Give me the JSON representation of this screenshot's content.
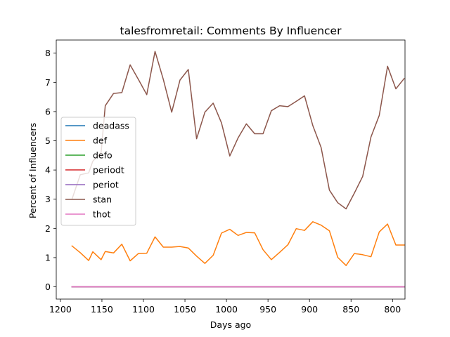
{
  "chart_data": {
    "type": "line",
    "title": "talesfromretail: Comments By Influencer",
    "xlabel": "Days ago",
    "ylabel": "Percent of Influencers",
    "xlim": [
      1205,
      785
    ],
    "ylim": [
      -0.42,
      8.45
    ],
    "x_inverted": true,
    "xticks": [
      1200,
      1150,
      1100,
      1050,
      1000,
      950,
      900,
      850,
      800
    ],
    "yticks": [
      0,
      1,
      2,
      3,
      4,
      5,
      6,
      7,
      8
    ],
    "legend_position": "center-left",
    "x": [
      1186,
      1176,
      1166,
      1161,
      1151,
      1146,
      1136,
      1126,
      1116,
      1106,
      1096,
      1086,
      1076,
      1066,
      1056,
      1046,
      1036,
      1026,
      1016,
      1006,
      996,
      986,
      976,
      966,
      956,
      946,
      936,
      926,
      916,
      906,
      896,
      886,
      876,
      866,
      856,
      846,
      836,
      826,
      816,
      806,
      796,
      786
    ],
    "series": [
      {
        "name": "deadass",
        "color": "#1f77b4",
        "values": [
          0,
          0,
          0,
          0,
          0,
          0,
          0,
          0,
          0,
          0,
          0,
          0,
          0,
          0,
          0,
          0,
          0,
          0,
          0,
          0,
          0,
          0,
          0,
          0,
          0,
          0,
          0,
          0,
          0,
          0,
          0,
          0,
          0,
          0,
          0,
          0,
          0,
          0,
          0,
          0,
          0,
          0
        ]
      },
      {
        "name": "def",
        "color": "#ff7f0e",
        "values": [
          1.4,
          1.17,
          0.9,
          1.2,
          0.93,
          1.21,
          1.16,
          1.46,
          0.89,
          1.14,
          1.15,
          1.71,
          1.36,
          1.36,
          1.38,
          1.33,
          1.05,
          0.8,
          1.08,
          1.84,
          1.97,
          1.76,
          1.86,
          1.85,
          1.27,
          0.93,
          1.18,
          1.44,
          1.99,
          1.93,
          2.23,
          2.11,
          1.92,
          1.01,
          0.73,
          1.14,
          1.1,
          1.03,
          1.88,
          2.15,
          1.43,
          1.43
        ]
      },
      {
        "name": "defo",
        "color": "#2ca02c",
        "values": [
          0,
          0,
          0,
          0,
          0,
          0,
          0,
          0,
          0,
          0,
          0,
          0,
          0,
          0,
          0,
          0,
          0,
          0,
          0,
          0,
          0,
          0,
          0,
          0,
          0,
          0,
          0,
          0,
          0,
          0,
          0,
          0,
          0,
          0,
          0,
          0,
          0,
          0,
          0,
          0,
          0,
          0
        ]
      },
      {
        "name": "periodt",
        "color": "#d62728",
        "values": [
          0,
          0,
          0,
          0,
          0,
          0,
          0,
          0,
          0,
          0,
          0,
          0,
          0,
          0,
          0,
          0,
          0,
          0,
          0,
          0,
          0,
          0,
          0,
          0,
          0,
          0,
          0,
          0,
          0,
          0,
          0,
          0,
          0,
          0,
          0,
          0,
          0,
          0,
          0,
          0,
          0,
          0
        ]
      },
      {
        "name": "periot",
        "color": "#9467bd",
        "values": [
          0,
          0,
          0,
          0,
          0,
          0,
          0,
          0,
          0,
          0,
          0,
          0,
          0,
          0,
          0,
          0,
          0,
          0,
          0,
          0,
          0,
          0,
          0,
          0,
          0,
          0,
          0,
          0,
          0,
          0,
          0,
          0,
          0,
          0,
          0,
          0,
          0,
          0,
          0,
          0,
          0,
          0
        ]
      },
      {
        "name": "stan",
        "color": "#8c564b",
        "values": [
          3.0,
          3.84,
          3.9,
          4.3,
          4.6,
          6.2,
          6.62,
          6.65,
          7.6,
          7.1,
          6.58,
          8.06,
          7.1,
          5.98,
          7.08,
          7.44,
          5.07,
          5.98,
          6.29,
          5.61,
          4.48,
          5.1,
          5.58,
          5.24,
          5.24,
          6.03,
          6.2,
          6.17,
          6.35,
          6.54,
          5.52,
          4.77,
          3.31,
          2.88,
          2.67,
          3.21,
          3.78,
          5.13,
          5.87,
          7.55,
          6.78,
          7.13
        ]
      },
      {
        "name": "thot",
        "color": "#e377c2",
        "values": [
          0,
          0,
          0,
          0,
          0,
          0,
          0,
          0,
          0,
          0,
          0,
          0,
          0,
          0,
          0,
          0,
          0,
          0,
          0,
          0,
          0,
          0,
          0,
          0,
          0,
          0,
          0,
          0,
          0,
          0,
          0,
          0,
          0,
          0,
          0,
          0,
          0,
          0,
          0,
          0,
          0,
          0
        ]
      }
    ]
  }
}
